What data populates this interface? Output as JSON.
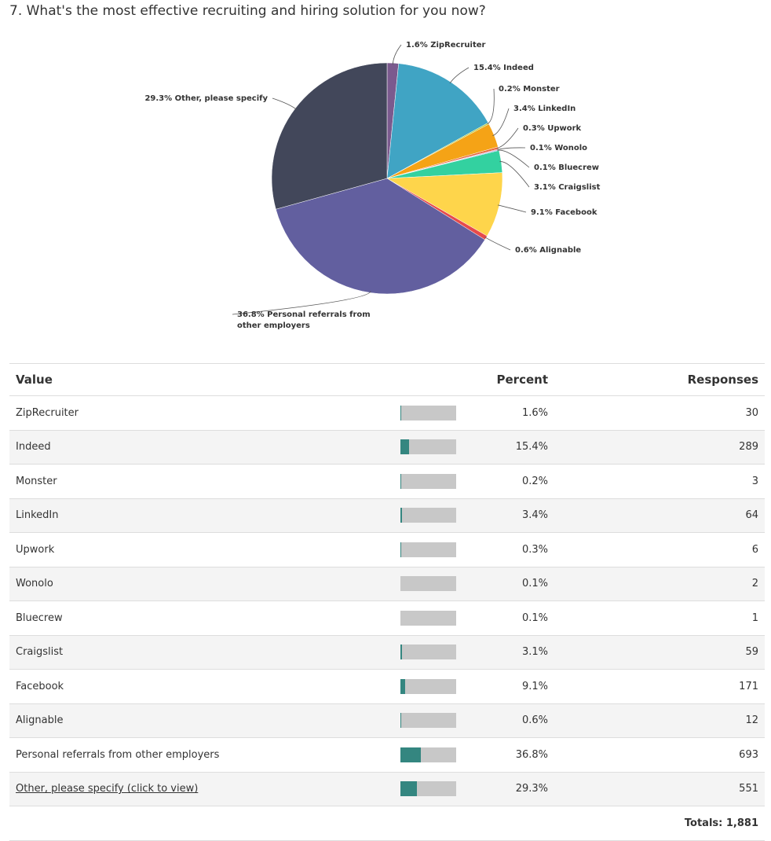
{
  "question": "7. What's the most effective recruiting and hiring solution for you now?",
  "chart_data": {
    "type": "pie",
    "title": "7. What's the most effective recruiting and hiring solution for you now?",
    "slices": [
      {
        "name": "ZipRecruiter",
        "percent": 1.6,
        "label": "1.6% ZipRecruiter",
        "color": "#7b5a8e"
      },
      {
        "name": "Indeed",
        "percent": 15.4,
        "label": "15.4% Indeed",
        "color": "#40a4c4"
      },
      {
        "name": "Monster",
        "percent": 0.2,
        "label": "0.2% Monster",
        "color": "#b8c93c"
      },
      {
        "name": "LinkedIn",
        "percent": 3.4,
        "label": "3.4% LinkedIn",
        "color": "#f5a316"
      },
      {
        "name": "Upwork",
        "percent": 0.3,
        "label": "0.3% Upwork",
        "color": "#e8663a"
      },
      {
        "name": "Wonolo",
        "percent": 0.1,
        "label": "0.1% Wonolo",
        "color": "#c44f9a"
      },
      {
        "name": "Bluecrew",
        "percent": 0.1,
        "label": "0.1% Bluecrew",
        "color": "#4a79c9"
      },
      {
        "name": "Craigslist",
        "percent": 3.1,
        "label": "3.1% Craigslist",
        "color": "#33d1a0"
      },
      {
        "name": "Facebook",
        "percent": 9.1,
        "label": "9.1% Facebook",
        "color": "#fed54b"
      },
      {
        "name": "Alignable",
        "percent": 0.6,
        "label": "0.6% Alignable",
        "color": "#e64b4b"
      },
      {
        "name": "Personal referrals from other employers",
        "percent": 36.8,
        "label": "36.8% Personal referrals from other employers",
        "color": "#625f9f"
      },
      {
        "name": "Other, please specify",
        "percent": 29.3,
        "label": "29.3% Other, please specify",
        "color": "#42475a"
      }
    ]
  },
  "table": {
    "headers": {
      "value": "Value",
      "percent": "Percent",
      "responses": "Responses"
    },
    "rows": [
      {
        "value": "ZipRecruiter",
        "percent": "1.6%",
        "fraction": 0.016,
        "responses": "30"
      },
      {
        "value": "Indeed",
        "percent": "15.4%",
        "fraction": 0.154,
        "responses": "289"
      },
      {
        "value": "Monster",
        "percent": "0.2%",
        "fraction": 0.002,
        "responses": "3"
      },
      {
        "value": "LinkedIn",
        "percent": "3.4%",
        "fraction": 0.034,
        "responses": "64"
      },
      {
        "value": "Upwork",
        "percent": "0.3%",
        "fraction": 0.003,
        "responses": "6"
      },
      {
        "value": "Wonolo",
        "percent": "0.1%",
        "fraction": 0.001,
        "responses": "2"
      },
      {
        "value": "Bluecrew",
        "percent": "0.1%",
        "fraction": 0.001,
        "responses": "1"
      },
      {
        "value": "Craigslist",
        "percent": "3.1%",
        "fraction": 0.031,
        "responses": "59"
      },
      {
        "value": "Facebook",
        "percent": "9.1%",
        "fraction": 0.091,
        "responses": "171"
      },
      {
        "value": "Alignable",
        "percent": "0.6%",
        "fraction": 0.006,
        "responses": "12"
      },
      {
        "value": "Personal referrals from other employers",
        "percent": "36.8%",
        "fraction": 0.368,
        "responses": "693"
      },
      {
        "value": "Other, please specify (click to view)",
        "percent": "29.3%",
        "fraction": 0.293,
        "responses": "551",
        "is_link": true
      }
    ],
    "totals": "Totals: 1,881"
  },
  "colors": {
    "bar_fill": "#348680",
    "bar_track": "#c8c8c8"
  }
}
